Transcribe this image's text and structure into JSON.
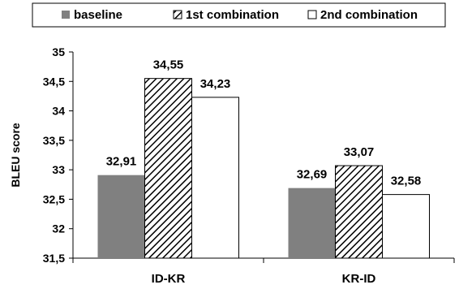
{
  "chart_data": {
    "type": "bar",
    "categories": [
      "ID-KR",
      "KR-ID"
    ],
    "series": [
      {
        "name": "baseline",
        "values": [
          32.91,
          32.69
        ],
        "labels": [
          "32,91",
          "32,69"
        ],
        "color": "#808080",
        "pattern": "solid"
      },
      {
        "name": "1st combination",
        "values": [
          34.55,
          33.07
        ],
        "labels": [
          "34,55",
          "33,07"
        ],
        "color": "#000000",
        "pattern": "diagonal-hatch"
      },
      {
        "name": "2nd combination",
        "values": [
          34.23,
          32.58
        ],
        "labels": [
          "34,23",
          "32,58"
        ],
        "color": "#ffffff",
        "pattern": "solid"
      }
    ],
    "ylabel": "BLEU score",
    "ylim": [
      31.5,
      35
    ],
    "yticks": [
      {
        "value": 31.5,
        "label": "31,5"
      },
      {
        "value": 32,
        "label": "32"
      },
      {
        "value": 32.5,
        "label": "32,5"
      },
      {
        "value": 33,
        "label": "33"
      },
      {
        "value": 33.5,
        "label": "33,5"
      },
      {
        "value": 34,
        "label": "34"
      },
      {
        "value": 34.5,
        "label": "34,5"
      },
      {
        "value": 35,
        "label": "35"
      }
    ],
    "grid": false,
    "legend_position": "top"
  }
}
